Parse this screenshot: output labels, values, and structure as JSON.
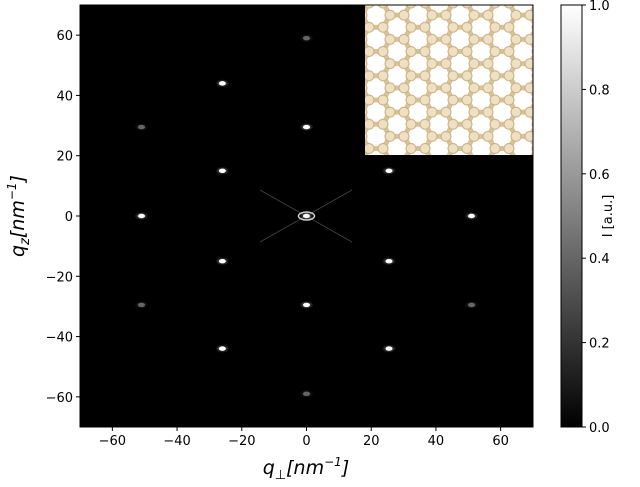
{
  "chart_data": {
    "type": "scatter",
    "xlabel": [
      "q",
      "⊥",
      "[nm",
      "−1",
      "]"
    ],
    "ylabel": [
      "q",
      "z",
      "[nm",
      "−1",
      "]"
    ],
    "x": [
      0,
      -26,
      0,
      -51,
      -26,
      25.5,
      -51,
      0,
      51,
      -26,
      25.5,
      -51,
      0,
      51,
      -26,
      25.5,
      0
    ],
    "series": [
      {
        "values": [
          59,
          44,
          29.5,
          29.5,
          15,
          15,
          0,
          0,
          0,
          -15,
          -15,
          -29.5,
          -29.5,
          -29.5,
          -44,
          -44,
          -59
        ],
        "intensity": [
          0.4,
          1,
          1,
          0.4,
          1,
          1,
          1,
          1,
          1,
          1,
          1,
          0.4,
          1,
          0.4,
          1,
          1,
          0.4
        ]
      }
    ],
    "xlim": [
      -70,
      70
    ],
    "ylim": [
      -70,
      70
    ],
    "xticks": [
      {
        "value": -60,
        "label": "−60"
      },
      {
        "value": -40,
        "label": "−40"
      },
      {
        "value": -20,
        "label": "−20"
      },
      0,
      20,
      40,
      60
    ],
    "yticks": [
      {
        "value": -60,
        "label": "−60"
      },
      {
        "value": -40,
        "label": "−40"
      },
      {
        "value": -20,
        "label": "−20"
      },
      0,
      20,
      40,
      60
    ],
    "colorbar": {
      "label": "I [a.u.]",
      "lim": [
        0,
        1
      ],
      "ticks": [
        {
          "value": 0,
          "label": "0.0"
        },
        {
          "value": 0.2,
          "label": "0.2"
        },
        {
          "value": 0.4,
          "label": "0.4"
        },
        {
          "value": 0.6,
          "label": "0.6"
        },
        {
          "value": 0.8,
          "label": "0.8"
        },
        {
          "value": 1,
          "label": "1.0"
        }
      ]
    }
  }
}
